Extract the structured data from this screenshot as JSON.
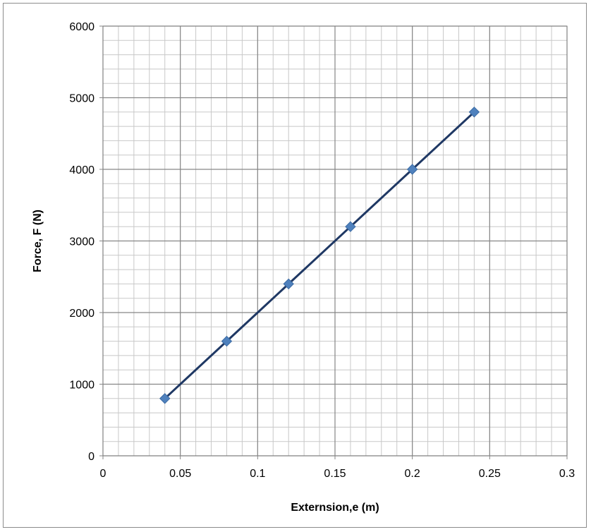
{
  "chart_data": {
    "type": "scatter",
    "title": "",
    "xlabel": "Externsion,e (m)",
    "ylabel": "Force, F (N)",
    "xlim": [
      0,
      0.3
    ],
    "ylim": [
      0,
      6000
    ],
    "x_ticks": [
      "0",
      "0.05",
      "0.1",
      "0.15",
      "0.2",
      "0.25",
      "0.3"
    ],
    "y_ticks": [
      "0",
      "1000",
      "2000",
      "3000",
      "4000",
      "5000",
      "6000"
    ],
    "grid": true,
    "legend": "none",
    "series": [
      {
        "x": [
          0.04,
          0.08,
          0.12,
          0.16,
          0.2,
          0.24
        ],
        "y": [
          800,
          1600,
          2400,
          3200,
          4000,
          4800
        ],
        "marker": "diamond",
        "color": "#4f81bd",
        "line_color": "#1f3864"
      }
    ]
  }
}
